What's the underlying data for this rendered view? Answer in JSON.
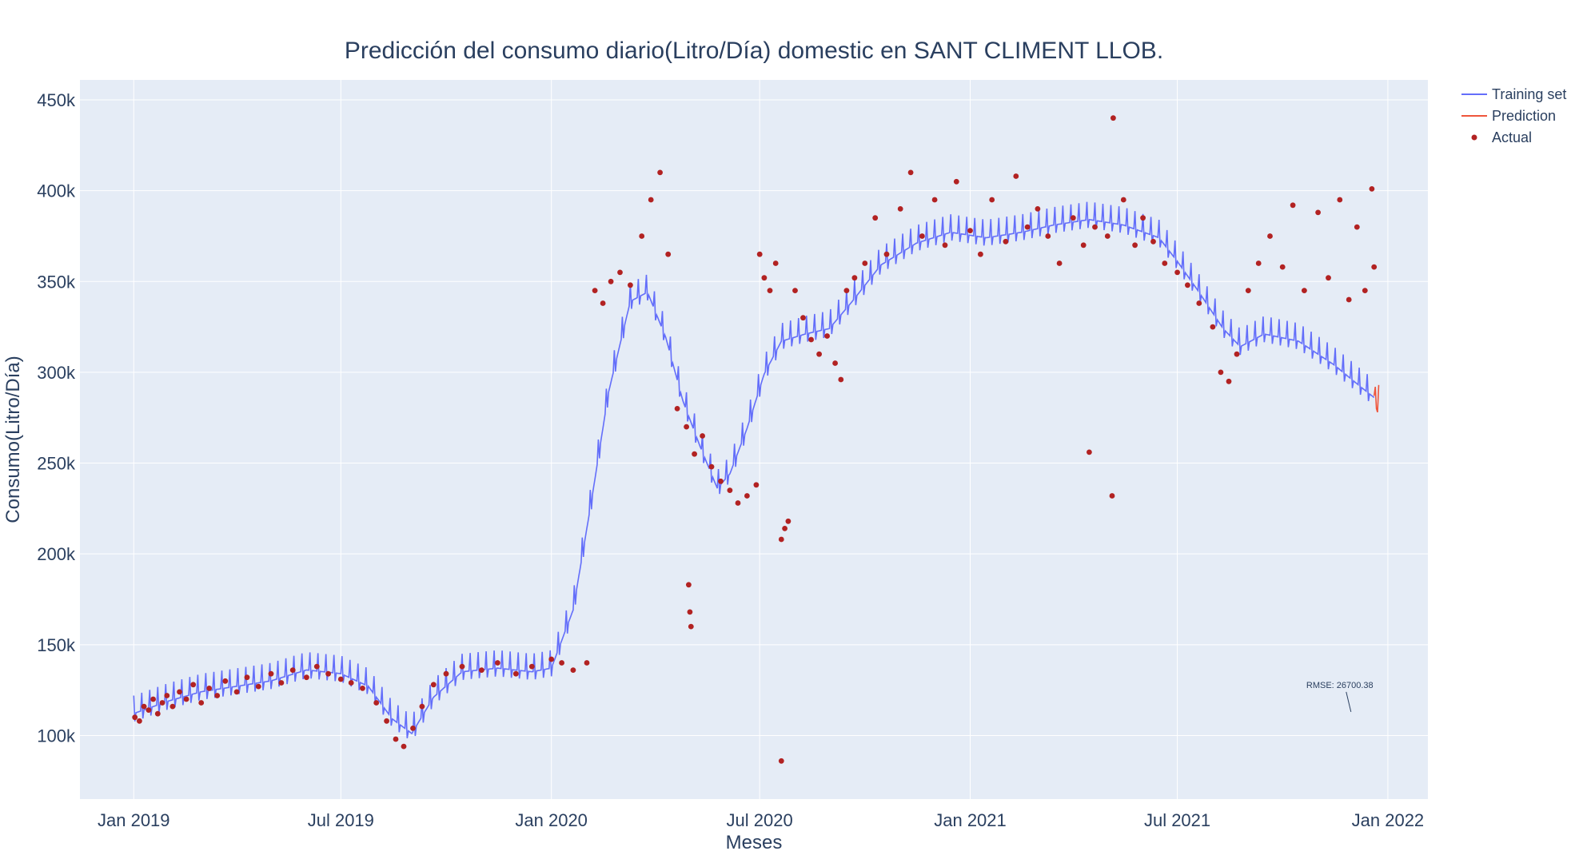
{
  "chart_data": {
    "type": "line",
    "title": "Predicción del consumo diario(Litro/Día) domestic en SANT CLIMENT LLOB.",
    "xlabel": "Meses",
    "ylabel": "Consumo(Litro/Día)",
    "xlim": [
      "2018-11-15",
      "2022-02-05"
    ],
    "ylim": [
      65000,
      461000
    ],
    "grid": true,
    "legend_position": "top-right",
    "x_ticks": [
      {
        "date": "2019-01-01",
        "label": "Jan 2019"
      },
      {
        "date": "2019-07-01",
        "label": "Jul 2019"
      },
      {
        "date": "2020-01-01",
        "label": "Jan 2020"
      },
      {
        "date": "2020-07-01",
        "label": "Jul 2020"
      },
      {
        "date": "2021-01-01",
        "label": "Jan 2021"
      },
      {
        "date": "2021-07-01",
        "label": "Jul 2021"
      },
      {
        "date": "2022-01-01",
        "label": "Jan 2022"
      }
    ],
    "y_ticks": [
      {
        "value": 100000,
        "label": "100k"
      },
      {
        "value": 150000,
        "label": "150k"
      },
      {
        "value": 200000,
        "label": "200k"
      },
      {
        "value": 250000,
        "label": "250k"
      },
      {
        "value": 300000,
        "label": "300k"
      },
      {
        "value": 350000,
        "label": "350k"
      },
      {
        "value": 400000,
        "label": "400k"
      },
      {
        "value": 450000,
        "label": "450k"
      }
    ],
    "series": [
      {
        "name": "Training set",
        "mode": "line",
        "color": "#636efa",
        "weekly_amplitude": 9000,
        "points": [
          [
            "2019-01-01",
            113000
          ],
          [
            "2019-02-01",
            120000
          ],
          [
            "2019-03-01",
            125000
          ],
          [
            "2019-04-01",
            128000
          ],
          [
            "2019-05-01",
            131000
          ],
          [
            "2019-06-01",
            137000
          ],
          [
            "2019-07-01",
            135000
          ],
          [
            "2019-07-25",
            128000
          ],
          [
            "2019-08-15",
            110000
          ],
          [
            "2019-09-01",
            102000
          ],
          [
            "2019-09-20",
            122000
          ],
          [
            "2019-10-15",
            136000
          ],
          [
            "2019-11-15",
            138000
          ],
          [
            "2019-12-15",
            136000
          ],
          [
            "2020-01-01",
            138000
          ],
          [
            "2020-01-20",
            170000
          ],
          [
            "2020-02-05",
            230000
          ],
          [
            "2020-02-20",
            290000
          ],
          [
            "2020-03-10",
            340000
          ],
          [
            "2020-03-25",
            345000
          ],
          [
            "2020-04-10",
            320000
          ],
          [
            "2020-04-25",
            285000
          ],
          [
            "2020-05-10",
            260000
          ],
          [
            "2020-05-25",
            237000
          ],
          [
            "2020-06-05",
            245000
          ],
          [
            "2020-06-20",
            270000
          ],
          [
            "2020-07-05",
            300000
          ],
          [
            "2020-07-20",
            318000
          ],
          [
            "2020-08-10",
            322000
          ],
          [
            "2020-08-31",
            325000
          ],
          [
            "2020-09-20",
            340000
          ],
          [
            "2020-10-15",
            360000
          ],
          [
            "2020-11-15",
            372000
          ],
          [
            "2020-12-15",
            378000
          ],
          [
            "2021-01-15",
            375000
          ],
          [
            "2021-02-15",
            378000
          ],
          [
            "2021-03-15",
            382000
          ],
          [
            "2021-04-15",
            385000
          ],
          [
            "2021-05-15",
            382000
          ],
          [
            "2021-06-15",
            375000
          ],
          [
            "2021-07-01",
            362000
          ],
          [
            "2021-07-20",
            345000
          ],
          [
            "2021-08-10",
            325000
          ],
          [
            "2021-08-25",
            315000
          ],
          [
            "2021-09-15",
            322000
          ],
          [
            "2021-10-15",
            318000
          ],
          [
            "2021-11-15",
            305000
          ],
          [
            "2021-12-10",
            292000
          ],
          [
            "2021-12-20",
            287000
          ]
        ]
      },
      {
        "name": "Prediction",
        "mode": "line",
        "color": "#ef553b",
        "points": [
          [
            "2021-12-20",
            287000
          ],
          [
            "2021-12-21",
            292000
          ],
          [
            "2021-12-22",
            280000
          ],
          [
            "2021-12-23",
            278000
          ],
          [
            "2021-12-24",
            293000
          ]
        ]
      },
      {
        "name": "Actual",
        "mode": "markers",
        "color": "#b22222",
        "points": [
          [
            "2019-01-02",
            110000
          ],
          [
            "2019-01-06",
            108000
          ],
          [
            "2019-01-10",
            116000
          ],
          [
            "2019-01-14",
            114000
          ],
          [
            "2019-01-18",
            120000
          ],
          [
            "2019-01-22",
            112000
          ],
          [
            "2019-01-26",
            118000
          ],
          [
            "2019-01-30",
            122000
          ],
          [
            "2019-02-04",
            116000
          ],
          [
            "2019-02-10",
            124000
          ],
          [
            "2019-02-16",
            120000
          ],
          [
            "2019-02-22",
            128000
          ],
          [
            "2019-03-01",
            118000
          ],
          [
            "2019-03-08",
            126000
          ],
          [
            "2019-03-15",
            122000
          ],
          [
            "2019-03-22",
            130000
          ],
          [
            "2019-04-01",
            124000
          ],
          [
            "2019-04-10",
            132000
          ],
          [
            "2019-04-20",
            127000
          ],
          [
            "2019-05-01",
            134000
          ],
          [
            "2019-05-10",
            129000
          ],
          [
            "2019-05-20",
            136000
          ],
          [
            "2019-06-01",
            132000
          ],
          [
            "2019-06-10",
            138000
          ],
          [
            "2019-06-20",
            134000
          ],
          [
            "2019-07-01",
            131000
          ],
          [
            "2019-07-10",
            129000
          ],
          [
            "2019-07-20",
            126000
          ],
          [
            "2019-08-01",
            118000
          ],
          [
            "2019-08-10",
            108000
          ],
          [
            "2019-08-18",
            98000
          ],
          [
            "2019-08-25",
            94000
          ],
          [
            "2019-09-02",
            104000
          ],
          [
            "2019-09-10",
            116000
          ],
          [
            "2019-09-20",
            128000
          ],
          [
            "2019-10-01",
            134000
          ],
          [
            "2019-10-15",
            138000
          ],
          [
            "2019-11-01",
            136000
          ],
          [
            "2019-11-15",
            140000
          ],
          [
            "2019-12-01",
            134000
          ],
          [
            "2019-12-15",
            138000
          ],
          [
            "2020-01-01",
            142000
          ],
          [
            "2020-01-10",
            140000
          ],
          [
            "2020-01-20",
            136000
          ],
          [
            "2020-02-01",
            140000
          ],
          [
            "2020-02-08",
            345000
          ],
          [
            "2020-02-15",
            338000
          ],
          [
            "2020-02-22",
            350000
          ],
          [
            "2020-03-01",
            355000
          ],
          [
            "2020-03-10",
            348000
          ],
          [
            "2020-03-20",
            375000
          ],
          [
            "2020-03-28",
            395000
          ],
          [
            "2020-04-05",
            410000
          ],
          [
            "2020-04-12",
            365000
          ],
          [
            "2020-04-20",
            280000
          ],
          [
            "2020-04-28",
            270000
          ],
          [
            "2020-05-05",
            255000
          ],
          [
            "2020-05-12",
            265000
          ],
          [
            "2020-05-20",
            248000
          ],
          [
            "2020-05-28",
            240000
          ],
          [
            "2020-06-05",
            235000
          ],
          [
            "2020-06-12",
            228000
          ],
          [
            "2020-06-20",
            232000
          ],
          [
            "2020-06-28",
            238000
          ],
          [
            "2020-04-30",
            183000
          ],
          [
            "2020-05-01",
            168000
          ],
          [
            "2020-05-02",
            160000
          ],
          [
            "2020-07-01",
            365000
          ],
          [
            "2020-07-05",
            352000
          ],
          [
            "2020-07-10",
            345000
          ],
          [
            "2020-07-15",
            360000
          ],
          [
            "2020-07-20",
            208000
          ],
          [
            "2020-07-23",
            214000
          ],
          [
            "2020-07-26",
            218000
          ],
          [
            "2020-07-20",
            86000
          ],
          [
            "2020-08-01",
            345000
          ],
          [
            "2020-08-08",
            330000
          ],
          [
            "2020-08-15",
            318000
          ],
          [
            "2020-08-22",
            310000
          ],
          [
            "2020-08-29",
            320000
          ],
          [
            "2020-09-05",
            305000
          ],
          [
            "2020-09-10",
            296000
          ],
          [
            "2020-09-15",
            345000
          ],
          [
            "2020-09-22",
            352000
          ],
          [
            "2020-10-01",
            360000
          ],
          [
            "2020-10-10",
            385000
          ],
          [
            "2020-10-20",
            365000
          ],
          [
            "2020-11-01",
            390000
          ],
          [
            "2020-11-10",
            410000
          ],
          [
            "2020-11-20",
            375000
          ],
          [
            "2020-12-01",
            395000
          ],
          [
            "2020-12-10",
            370000
          ],
          [
            "2020-12-20",
            405000
          ],
          [
            "2021-01-01",
            378000
          ],
          [
            "2021-01-10",
            365000
          ],
          [
            "2021-01-20",
            395000
          ],
          [
            "2021-02-01",
            372000
          ],
          [
            "2021-02-10",
            408000
          ],
          [
            "2021-02-20",
            380000
          ],
          [
            "2021-03-01",
            390000
          ],
          [
            "2021-03-10",
            375000
          ],
          [
            "2021-03-20",
            360000
          ],
          [
            "2021-04-01",
            385000
          ],
          [
            "2021-04-10",
            370000
          ],
          [
            "2021-04-15",
            256000
          ],
          [
            "2021-04-20",
            380000
          ],
          [
            "2021-05-01",
            375000
          ],
          [
            "2021-05-05",
            232000
          ],
          [
            "2021-05-06",
            440000
          ],
          [
            "2021-05-15",
            395000
          ],
          [
            "2021-05-25",
            370000
          ],
          [
            "2021-06-01",
            385000
          ],
          [
            "2021-06-10",
            372000
          ],
          [
            "2021-06-20",
            360000
          ],
          [
            "2021-07-01",
            355000
          ],
          [
            "2021-07-10",
            348000
          ],
          [
            "2021-07-20",
            338000
          ],
          [
            "2021-08-01",
            325000
          ],
          [
            "2021-08-08",
            300000
          ],
          [
            "2021-08-15",
            295000
          ],
          [
            "2021-08-22",
            310000
          ],
          [
            "2021-09-01",
            345000
          ],
          [
            "2021-09-10",
            360000
          ],
          [
            "2021-09-20",
            375000
          ],
          [
            "2021-10-01",
            358000
          ],
          [
            "2021-10-10",
            392000
          ],
          [
            "2021-10-20",
            345000
          ],
          [
            "2021-11-01",
            388000
          ],
          [
            "2021-11-10",
            352000
          ],
          [
            "2021-11-20",
            395000
          ],
          [
            "2021-11-28",
            340000
          ],
          [
            "2021-12-05",
            380000
          ],
          [
            "2021-12-12",
            345000
          ],
          [
            "2021-12-18",
            401000
          ],
          [
            "2021-12-20",
            358000
          ]
        ]
      }
    ],
    "annotations": [
      {
        "text": "RMSE: 26700.38",
        "x": "2021-11-20",
        "y": 113000
      }
    ]
  },
  "legend": {
    "items": [
      "Training set",
      "Prediction",
      "Actual"
    ]
  }
}
